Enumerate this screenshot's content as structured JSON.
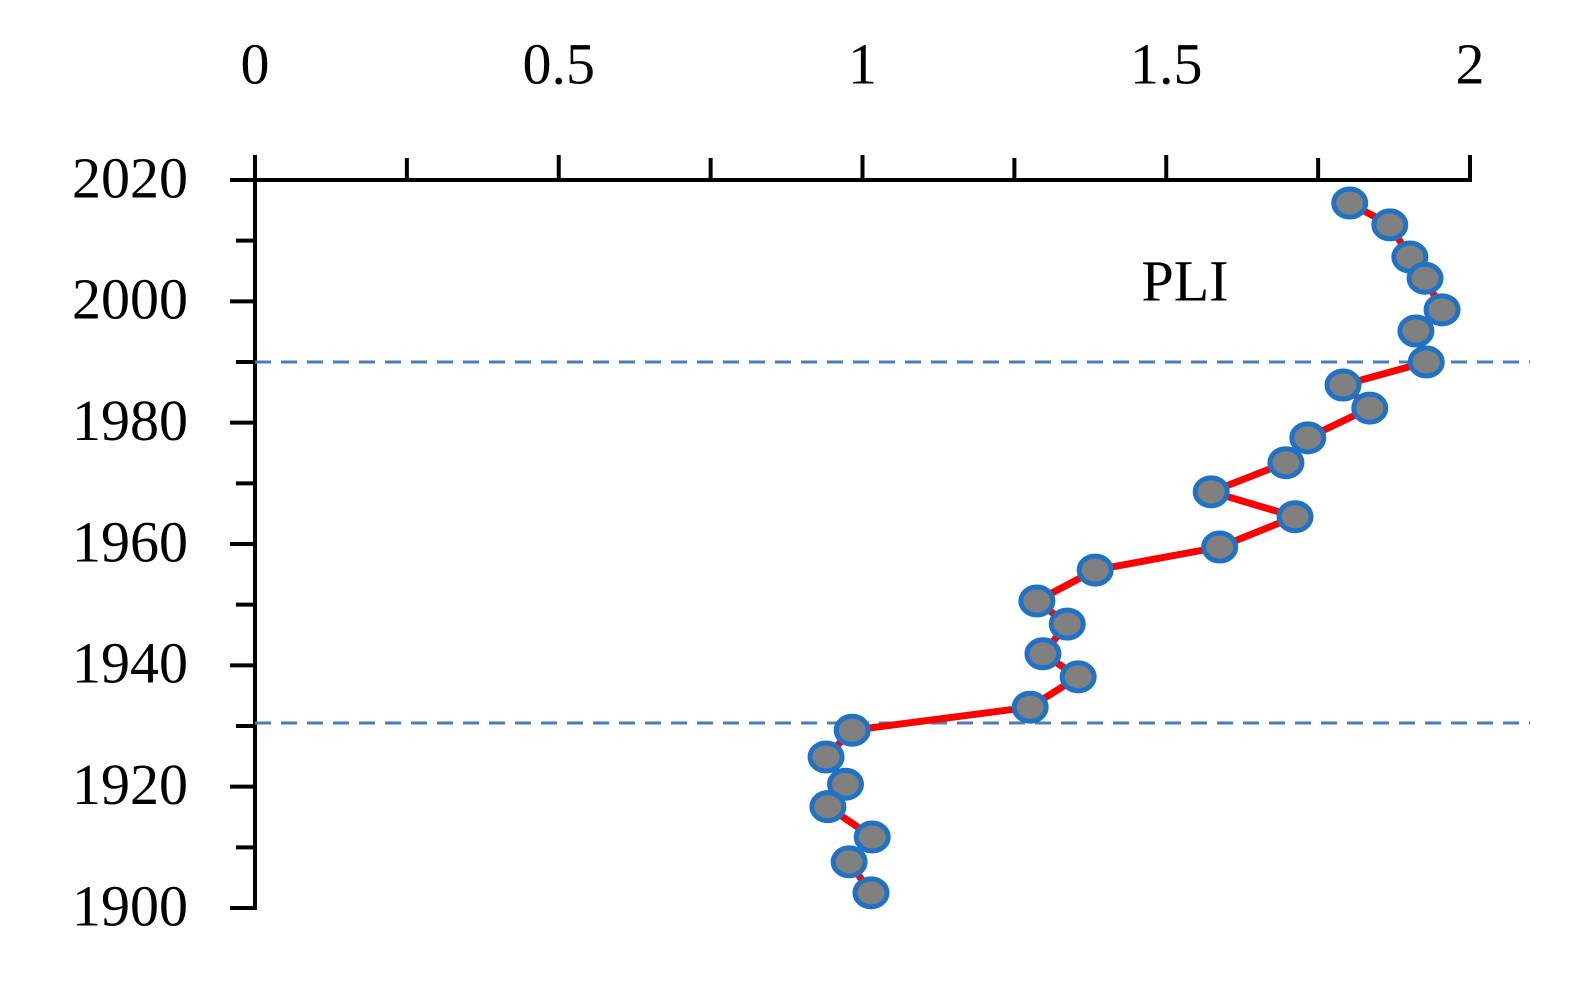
{
  "chart_data": {
    "type": "line",
    "xlim": [
      0,
      2
    ],
    "xticks": [
      0,
      0.5,
      1,
      1.5,
      2
    ],
    "xticks_minor": [
      0.25,
      0.75,
      1.25,
      1.75
    ],
    "ylim": [
      1900,
      2020
    ],
    "yticks": [
      1900,
      1920,
      1940,
      1960,
      1980,
      2000,
      2020
    ],
    "yticks_minor": [
      1910,
      1930,
      1950,
      1970,
      1990,
      2010
    ],
    "reference_lines": [
      1990,
      1930.5
    ],
    "reference_color": "#4a7ebb",
    "series": [
      {
        "name": "PLI",
        "color": "#ff0000",
        "marker_color": "#808080",
        "edge_color": "#1f72c4",
        "x": [
          1.802,
          1.868,
          1.901,
          1.926,
          1.954,
          1.911,
          1.928,
          1.791,
          1.835,
          1.733,
          1.697,
          1.574,
          1.712,
          1.588,
          1.383,
          1.287,
          1.337,
          1.297,
          1.355,
          1.276,
          0.983,
          0.94,
          0.972,
          0.943,
          1.016,
          0.978,
          1.014
        ],
        "values": [
          2016.2,
          2012.6,
          2007.3,
          2003.8,
          1998.6,
          1995.1,
          1990.0,
          1986.2,
          1982.4,
          1977.5,
          1973.4,
          1968.6,
          1964.5,
          1959.5,
          1955.7,
          1950.6,
          1946.8,
          1941.9,
          1938.1,
          1933.1,
          1929.3,
          1924.9,
          1920.4,
          1916.7,
          1911.7,
          1907.6,
          1902.5
        ]
      }
    ]
  }
}
